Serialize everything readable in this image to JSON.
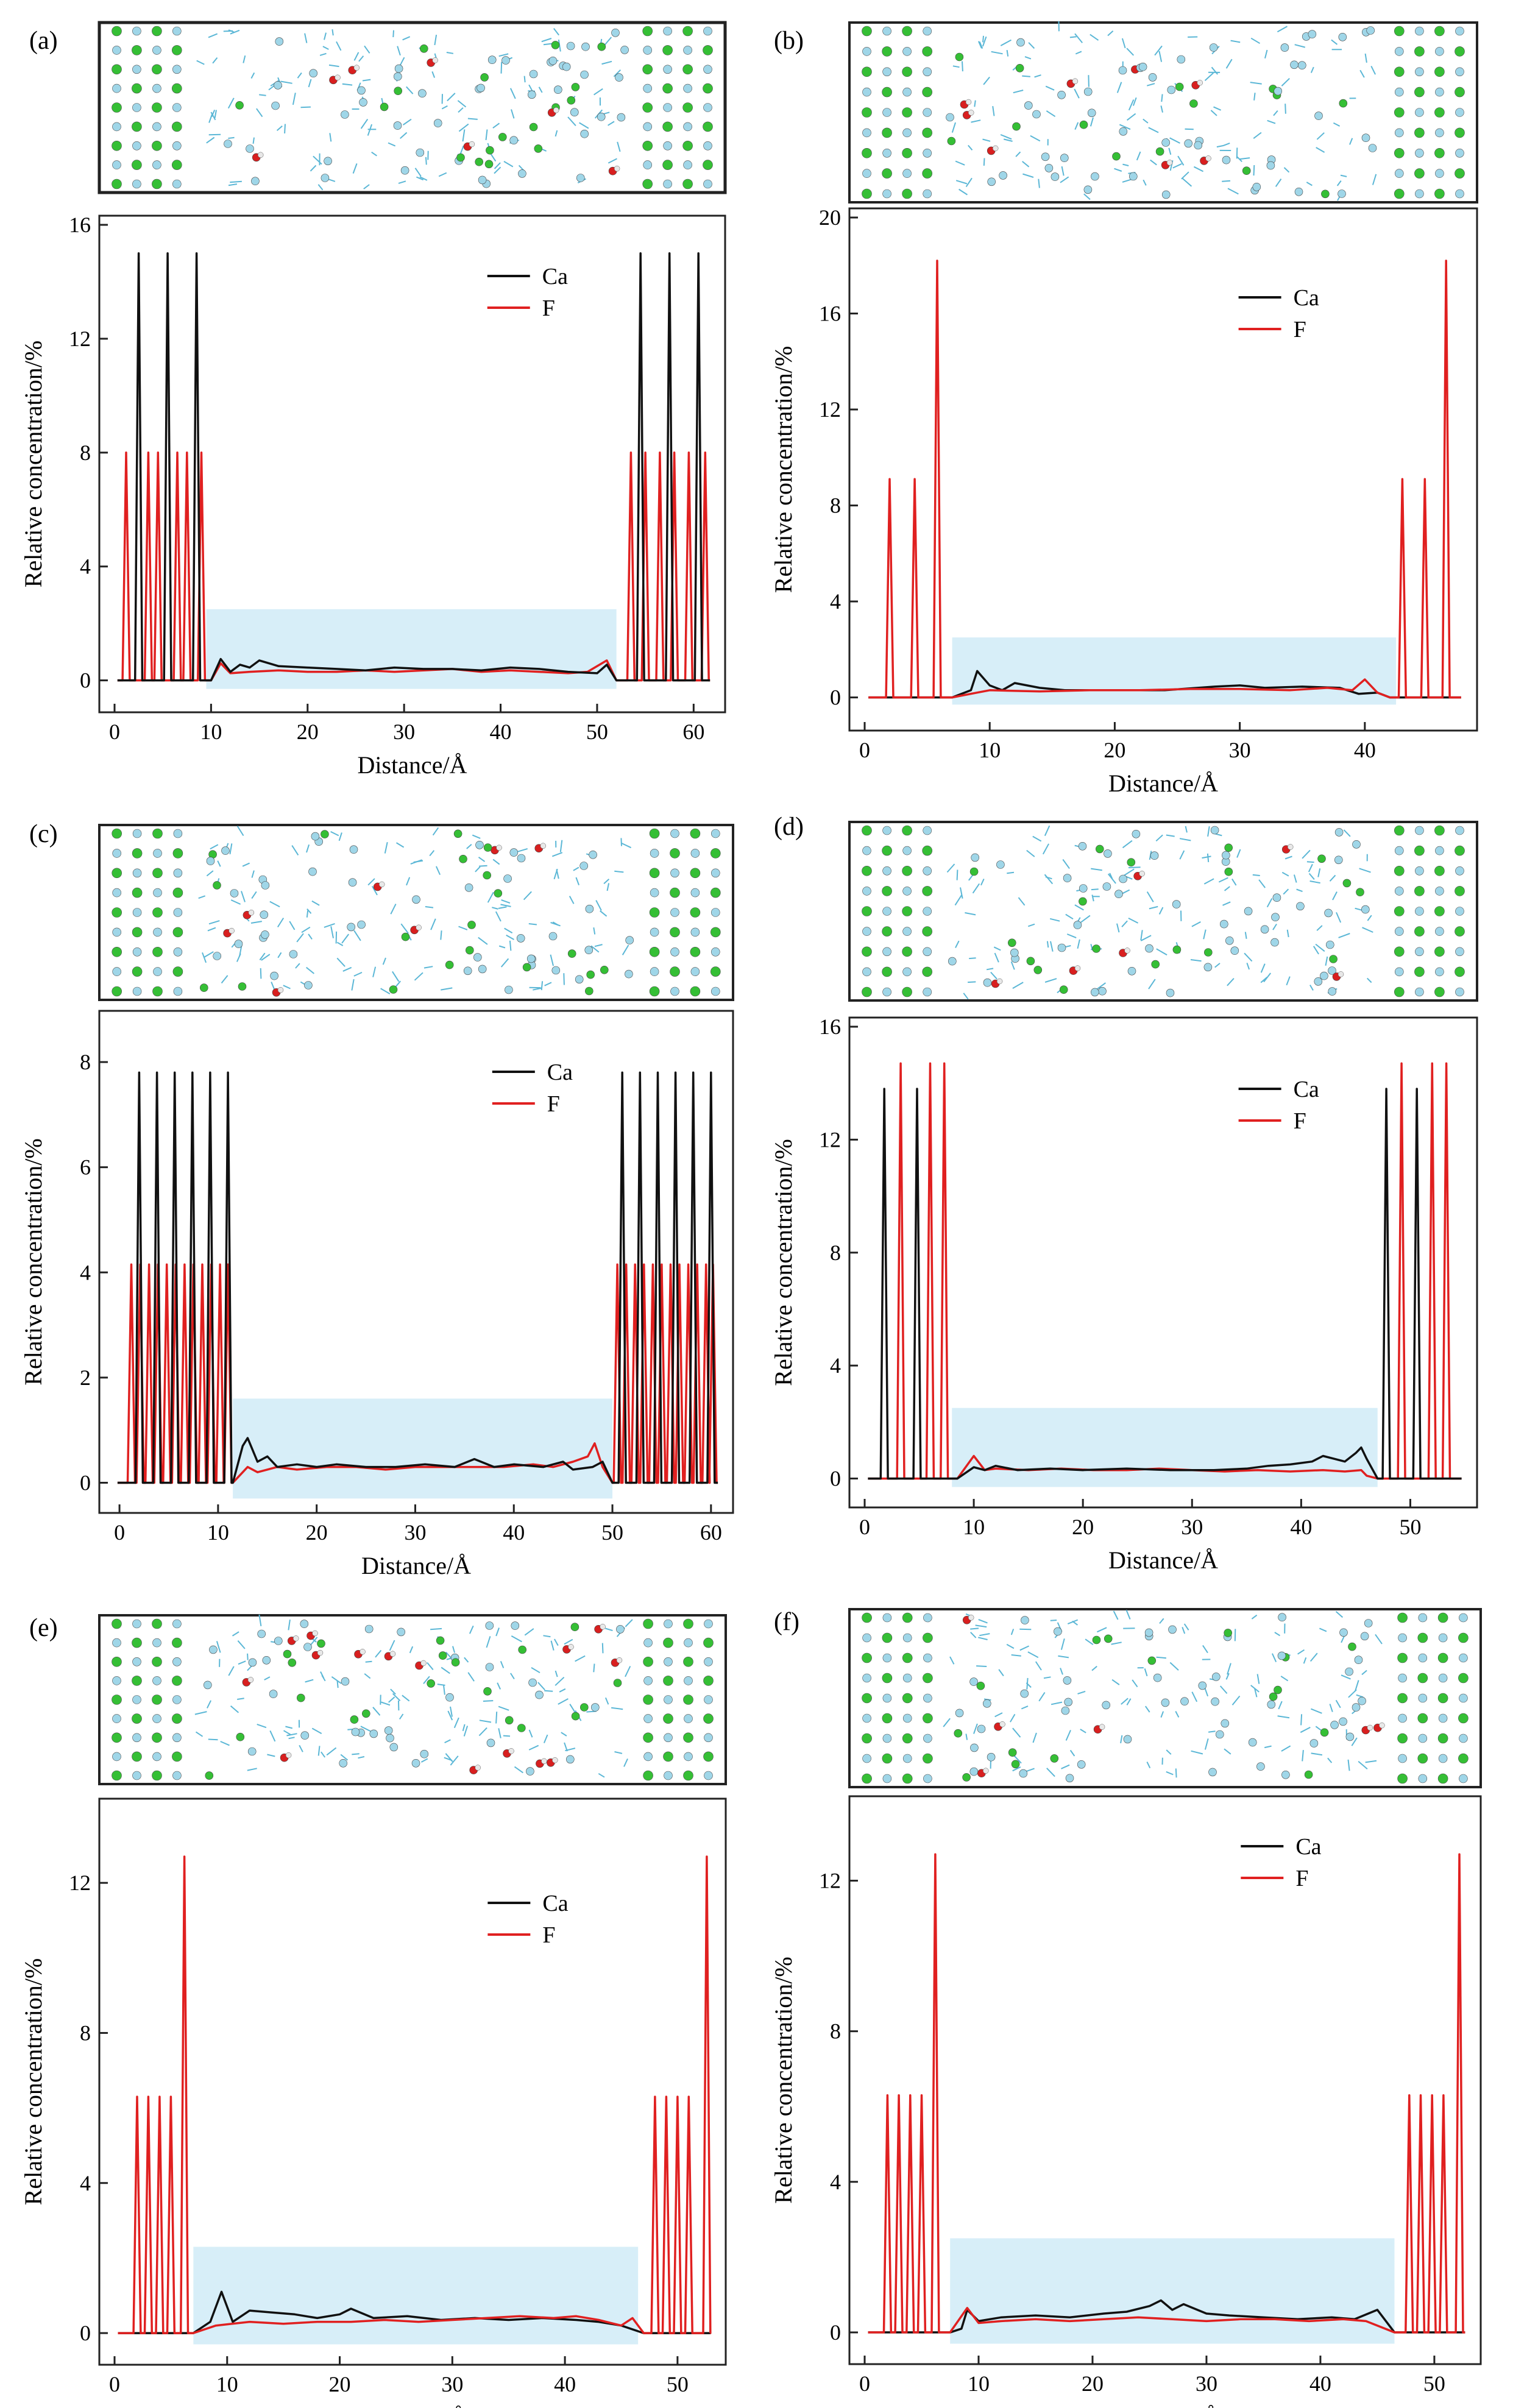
{
  "figure": {
    "x_axis_label": "Distance/Å",
    "y_axis_label": "Relative concentration/%",
    "colors": {
      "ca": "#111111",
      "f": "#e02020",
      "band": "#d7eef8",
      "atom_ca": "#35bf35",
      "atom_f": "#9fd6e8",
      "water_o": "#d81f1f",
      "water_h": "#e8e8e8",
      "water_line": "#5bb7d6"
    }
  },
  "chart_data": [
    {
      "panel": "(a)",
      "type": "line",
      "xlim": [
        0,
        62
      ],
      "ylim": [
        -0.8,
        16
      ],
      "xticks": [
        0,
        10,
        20,
        30,
        40,
        50,
        60
      ],
      "yticks": [
        0,
        4,
        8,
        12,
        16
      ],
      "legend": [
        "Ca",
        "F"
      ],
      "legend_position": "top-right",
      "band": {
        "x0": 9.5,
        "x1": 52,
        "y0": -0.3,
        "y1": 2.5
      },
      "ca_peaks": [
        2.5,
        5.5,
        8.5,
        54.5,
        57.5,
        60.5
      ],
      "ca_peak_height": 15,
      "f_peaks": [
        1.2,
        3.5,
        4.5,
        6.5,
        7.5,
        9,
        53.5,
        55,
        56.5,
        58,
        59.5,
        61.2
      ],
      "f_peak_height": 8,
      "interior": {
        "x0": 10,
        "x1": 52,
        "ca": [
          [
            10,
            0
          ],
          [
            11,
            0.75
          ],
          [
            12,
            0.3
          ],
          [
            13,
            0.55
          ],
          [
            14,
            0.45
          ],
          [
            15,
            0.7
          ],
          [
            17,
            0.5
          ],
          [
            20,
            0.45
          ],
          [
            23,
            0.4
          ],
          [
            26,
            0.35
          ],
          [
            29,
            0.45
          ],
          [
            32,
            0.4
          ],
          [
            35,
            0.4
          ],
          [
            38,
            0.35
          ],
          [
            41,
            0.45
          ],
          [
            44,
            0.4
          ],
          [
            47,
            0.3
          ],
          [
            50,
            0.25
          ],
          [
            51,
            0.55
          ],
          [
            52,
            0
          ]
        ],
        "f": [
          [
            10,
            0
          ],
          [
            11,
            0.6
          ],
          [
            12,
            0.25
          ],
          [
            14,
            0.3
          ],
          [
            17,
            0.35
          ],
          [
            20,
            0.3
          ],
          [
            23,
            0.3
          ],
          [
            26,
            0.35
          ],
          [
            29,
            0.3
          ],
          [
            32,
            0.35
          ],
          [
            35,
            0.4
          ],
          [
            38,
            0.3
          ],
          [
            41,
            0.35
          ],
          [
            44,
            0.3
          ],
          [
            47,
            0.25
          ],
          [
            49,
            0.3
          ],
          [
            51,
            0.7
          ],
          [
            52,
            0
          ]
        ]
      }
    },
    {
      "panel": "(b)",
      "type": "line",
      "xlim": [
        0,
        48
      ],
      "ylim": [
        -1,
        20
      ],
      "xticks": [
        0,
        10,
        20,
        30,
        40
      ],
      "yticks": [
        0,
        4,
        8,
        12,
        16,
        20
      ],
      "legend": [
        "Ca",
        "F"
      ],
      "legend_position": "top-right",
      "band": {
        "x0": 7,
        "x1": 42.5,
        "y0": -0.3,
        "y1": 2.5
      },
      "ca_peaks": [],
      "ca_peak_height": 0,
      "f_peaks": [
        2,
        4,
        5.8,
        43,
        44.8,
        46.5
      ],
      "f_peak_heights": [
        9.1,
        9.1,
        18.2,
        9.1,
        9.1,
        18.2
      ],
      "interior": {
        "x0": 7,
        "x1": 42,
        "ca": [
          [
            7,
            0
          ],
          [
            8.5,
            0.3
          ],
          [
            9,
            1.1
          ],
          [
            10,
            0.5
          ],
          [
            11,
            0.3
          ],
          [
            12,
            0.6
          ],
          [
            14,
            0.4
          ],
          [
            16,
            0.3
          ],
          [
            20,
            0.3
          ],
          [
            24,
            0.3
          ],
          [
            28,
            0.45
          ],
          [
            30,
            0.5
          ],
          [
            32,
            0.4
          ],
          [
            35,
            0.45
          ],
          [
            38,
            0.4
          ],
          [
            39.5,
            0.15
          ],
          [
            41,
            0.2
          ],
          [
            42,
            0
          ]
        ],
        "f": [
          [
            7,
            0
          ],
          [
            9,
            0.2
          ],
          [
            10,
            0.3
          ],
          [
            14,
            0.25
          ],
          [
            18,
            0.3
          ],
          [
            22,
            0.3
          ],
          [
            26,
            0.35
          ],
          [
            30,
            0.35
          ],
          [
            34,
            0.3
          ],
          [
            37,
            0.4
          ],
          [
            39,
            0.3
          ],
          [
            40,
            0.75
          ],
          [
            41,
            0.2
          ],
          [
            42,
            0
          ]
        ]
      }
    },
    {
      "panel": "(c)",
      "type": "line",
      "xlim": [
        -0.5,
        61
      ],
      "ylim": [
        -0.4,
        8.8
      ],
      "xticks": [
        0,
        10,
        20,
        30,
        40,
        50,
        60
      ],
      "yticks": [
        0,
        2,
        4,
        6,
        8
      ],
      "legend": [
        "Ca",
        "F"
      ],
      "legend_position": "top-right",
      "band": {
        "x0": 11.5,
        "x1": 50,
        "y0": -0.3,
        "y1": 1.6
      },
      "ca_peaks": [
        2,
        3.8,
        5.6,
        7.4,
        9.2,
        11,
        51,
        52.8,
        54.6,
        56.4,
        58.2,
        60
      ],
      "ca_peak_height": 7.8,
      "f_peaks": [
        1.2,
        2.1,
        3,
        3.9,
        4.8,
        5.7,
        6.6,
        7.5,
        8.4,
        9.3,
        10.2,
        11,
        50.5,
        51.4,
        52.3,
        53.2,
        54.1,
        55,
        55.9,
        56.8,
        57.7,
        58.6,
        59.5,
        60.2
      ],
      "f_peak_height": 4.15,
      "interior": {
        "x0": 11.5,
        "x1": 50,
        "ca": [
          [
            11.5,
            0
          ],
          [
            12.5,
            0.7
          ],
          [
            13,
            0.85
          ],
          [
            14,
            0.4
          ],
          [
            15,
            0.5
          ],
          [
            16,
            0.3
          ],
          [
            18,
            0.35
          ],
          [
            20,
            0.3
          ],
          [
            22,
            0.35
          ],
          [
            25,
            0.3
          ],
          [
            28,
            0.3
          ],
          [
            31,
            0.35
          ],
          [
            34,
            0.3
          ],
          [
            36,
            0.45
          ],
          [
            38,
            0.3
          ],
          [
            40,
            0.35
          ],
          [
            43,
            0.3
          ],
          [
            45,
            0.4
          ],
          [
            46,
            0.25
          ],
          [
            48,
            0.3
          ],
          [
            49,
            0.4
          ],
          [
            50,
            0
          ]
        ],
        "f": [
          [
            11.5,
            0
          ],
          [
            13,
            0.3
          ],
          [
            14,
            0.2
          ],
          [
            16,
            0.3
          ],
          [
            18,
            0.25
          ],
          [
            21,
            0.3
          ],
          [
            24,
            0.3
          ],
          [
            27,
            0.25
          ],
          [
            30,
            0.3
          ],
          [
            33,
            0.3
          ],
          [
            36,
            0.3
          ],
          [
            39,
            0.3
          ],
          [
            42,
            0.35
          ],
          [
            44,
            0.3
          ],
          [
            46,
            0.4
          ],
          [
            47.5,
            0.5
          ],
          [
            48.2,
            0.75
          ],
          [
            49,
            0.3
          ],
          [
            50,
            0
          ]
        ]
      }
    },
    {
      "panel": "(d)",
      "type": "line",
      "xlim": [
        0,
        55
      ],
      "ylim": [
        -0.7,
        16
      ],
      "xticks": [
        0,
        10,
        20,
        30,
        40,
        50
      ],
      "yticks": [
        0,
        4,
        8,
        12,
        16
      ],
      "legend": [
        "Ca",
        "F"
      ],
      "legend_position": "top-right",
      "band": {
        "x0": 8,
        "x1": 47,
        "y0": -0.3,
        "y1": 2.5
      },
      "ca_peaks": [
        1.8,
        4.8,
        47.8,
        50.6
      ],
      "ca_peak_height": 13.8,
      "f_peaks": [
        3.3,
        6,
        7.3,
        49.2,
        52,
        53.3
      ],
      "f_peak_height": 14.7,
      "interior": {
        "x0": 8.5,
        "x1": 47,
        "ca": [
          [
            8.5,
            0
          ],
          [
            10,
            0.4
          ],
          [
            11,
            0.3
          ],
          [
            12,
            0.45
          ],
          [
            14,
            0.3
          ],
          [
            17,
            0.35
          ],
          [
            20,
            0.3
          ],
          [
            24,
            0.35
          ],
          [
            28,
            0.3
          ],
          [
            32,
            0.3
          ],
          [
            35,
            0.35
          ],
          [
            37,
            0.45
          ],
          [
            39,
            0.5
          ],
          [
            41,
            0.6
          ],
          [
            42,
            0.8
          ],
          [
            43,
            0.7
          ],
          [
            44,
            0.6
          ],
          [
            45,
            0.9
          ],
          [
            45.5,
            1.1
          ],
          [
            46,
            0.7
          ],
          [
            47,
            0
          ]
        ],
        "f": [
          [
            8.5,
            0
          ],
          [
            10,
            0.8
          ],
          [
            11,
            0.3
          ],
          [
            12,
            0.35
          ],
          [
            15,
            0.3
          ],
          [
            18,
            0.35
          ],
          [
            21,
            0.3
          ],
          [
            24,
            0.3
          ],
          [
            27,
            0.35
          ],
          [
            30,
            0.3
          ],
          [
            33,
            0.25
          ],
          [
            36,
            0.3
          ],
          [
            39,
            0.25
          ],
          [
            42,
            0.3
          ],
          [
            44,
            0.25
          ],
          [
            45.5,
            0.3
          ],
          [
            46,
            0.1
          ],
          [
            47,
            0
          ]
        ]
      }
    },
    {
      "panel": "(e)",
      "type": "line",
      "xlim": [
        0,
        53.2
      ],
      "ylim": [
        -0.6,
        14
      ],
      "xticks": [
        0,
        10,
        20,
        30,
        40,
        50
      ],
      "yticks": [
        0,
        4,
        8,
        12
      ],
      "legend": [
        "Ca",
        "F"
      ],
      "legend_position": "middle-right",
      "band": {
        "x0": 7,
        "x1": 46.5,
        "y0": -0.3,
        "y1": 2.3
      },
      "ca_peaks": [],
      "ca_peak_height": 0,
      "f_peaks": [
        2,
        3,
        4,
        5,
        6.2,
        48,
        49,
        50,
        51,
        52.6
      ],
      "f_peak_heights": [
        6.3,
        6.3,
        6.3,
        6.3,
        12.7,
        6.3,
        6.3,
        6.3,
        6.3,
        12.7
      ],
      "interior": {
        "x0": 7,
        "x1": 47,
        "ca": [
          [
            7,
            0
          ],
          [
            8.5,
            0.3
          ],
          [
            9.5,
            1.1
          ],
          [
            10.5,
            0.3
          ],
          [
            12,
            0.6
          ],
          [
            14,
            0.55
          ],
          [
            16,
            0.5
          ],
          [
            18,
            0.4
          ],
          [
            20,
            0.5
          ],
          [
            21,
            0.65
          ],
          [
            23,
            0.4
          ],
          [
            26,
            0.45
          ],
          [
            29,
            0.35
          ],
          [
            32,
            0.4
          ],
          [
            35,
            0.35
          ],
          [
            38,
            0.4
          ],
          [
            41,
            0.35
          ],
          [
            43,
            0.3
          ],
          [
            45,
            0.2
          ],
          [
            47,
            0
          ]
        ],
        "f": [
          [
            7,
            0
          ],
          [
            9,
            0.2
          ],
          [
            12,
            0.3
          ],
          [
            15,
            0.25
          ],
          [
            18,
            0.3
          ],
          [
            21,
            0.3
          ],
          [
            24,
            0.35
          ],
          [
            27,
            0.3
          ],
          [
            30,
            0.35
          ],
          [
            33,
            0.4
          ],
          [
            36,
            0.45
          ],
          [
            39,
            0.4
          ],
          [
            41,
            0.45
          ],
          [
            43,
            0.35
          ],
          [
            45,
            0.2
          ],
          [
            46,
            0.4
          ],
          [
            47,
            0
          ]
        ]
      }
    },
    {
      "panel": "(f)",
      "type": "line",
      "xlim": [
        0,
        53
      ],
      "ylim": [
        -0.6,
        14
      ],
      "xticks": [
        0,
        10,
        20,
        30,
        40,
        50
      ],
      "yticks": [
        0,
        4,
        8,
        12
      ],
      "legend": [
        "Ca",
        "F"
      ],
      "legend_position": "top-right",
      "band": {
        "x0": 7.5,
        "x1": 46.5,
        "y0": -0.3,
        "y1": 2.5
      },
      "ca_peaks": [],
      "ca_peak_height": 0,
      "f_peaks": [
        2,
        3,
        4,
        5,
        6.2,
        47.8,
        48.8,
        49.8,
        50.8,
        52.2
      ],
      "f_peak_heights": [
        6.3,
        6.3,
        6.3,
        6.3,
        12.7,
        6.3,
        6.3,
        6.3,
        6.3,
        12.7
      ],
      "interior": {
        "x0": 7.5,
        "x1": 46.5,
        "ca": [
          [
            7.5,
            0
          ],
          [
            8.5,
            0.1
          ],
          [
            9,
            0.6
          ],
          [
            10,
            0.3
          ],
          [
            12,
            0.4
          ],
          [
            15,
            0.45
          ],
          [
            18,
            0.4
          ],
          [
            21,
            0.5
          ],
          [
            23,
            0.55
          ],
          [
            25,
            0.7
          ],
          [
            26,
            0.85
          ],
          [
            27,
            0.6
          ],
          [
            28,
            0.75
          ],
          [
            30,
            0.5
          ],
          [
            32,
            0.45
          ],
          [
            35,
            0.4
          ],
          [
            38,
            0.35
          ],
          [
            41,
            0.4
          ],
          [
            43,
            0.35
          ],
          [
            45,
            0.6
          ],
          [
            46.5,
            0
          ]
        ],
        "f": [
          [
            7.5,
            0
          ],
          [
            9,
            0.65
          ],
          [
            10,
            0.25
          ],
          [
            12,
            0.3
          ],
          [
            15,
            0.35
          ],
          [
            18,
            0.3
          ],
          [
            21,
            0.35
          ],
          [
            24,
            0.4
          ],
          [
            27,
            0.35
          ],
          [
            30,
            0.3
          ],
          [
            33,
            0.35
          ],
          [
            36,
            0.35
          ],
          [
            39,
            0.3
          ],
          [
            42,
            0.35
          ],
          [
            44,
            0.3
          ],
          [
            46.5,
            0
          ]
        ]
      }
    }
  ]
}
